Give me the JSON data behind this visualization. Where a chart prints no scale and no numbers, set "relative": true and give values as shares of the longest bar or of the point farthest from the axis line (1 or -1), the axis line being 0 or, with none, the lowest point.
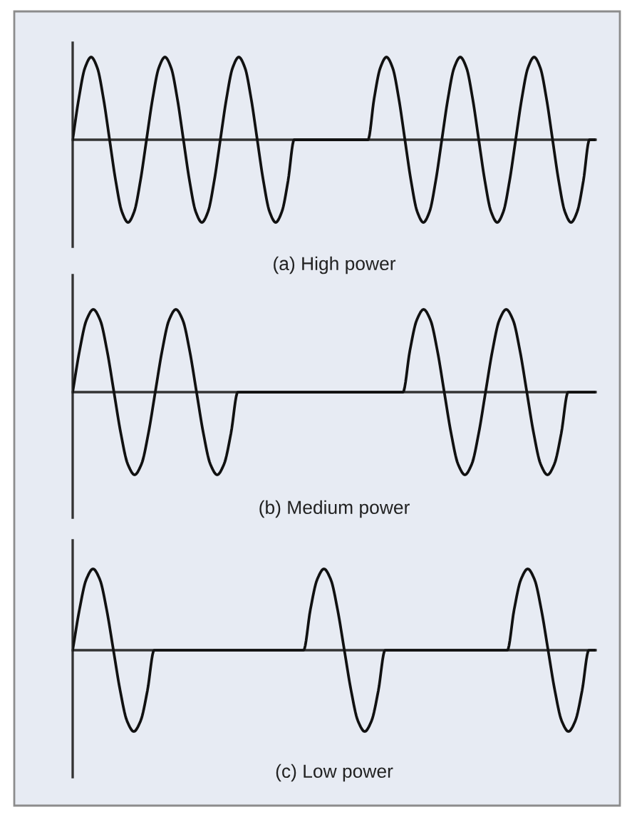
{
  "chart_data": [
    {
      "type": "line",
      "title": "(a) High power",
      "relative": true,
      "categories": [
        null,
        null,
        null,
        null,
        null,
        null,
        null,
        null,
        null,
        null,
        null,
        null,
        null,
        null,
        null,
        null,
        null,
        null,
        null,
        null,
        null,
        null,
        null,
        null,
        null,
        null,
        null,
        null,
        null,
        null,
        null,
        null,
        null,
        null,
        null,
        null,
        null,
        null,
        null,
        null,
        null,
        null,
        null,
        null,
        null,
        null,
        null,
        null,
        null,
        null,
        null,
        null,
        null,
        null,
        null,
        null,
        null,
        null,
        null,
        null,
        null,
        null,
        null,
        null,
        null,
        null,
        null,
        null,
        null,
        null,
        null,
        null,
        null,
        null,
        null,
        null,
        null,
        null,
        null,
        null,
        null,
        null,
        null,
        null,
        null,
        null
      ],
      "series": [
        {
          "color": "#111111",
          "values": [
            0,
            0.5,
            0.87,
            1,
            0.87,
            0.5,
            0,
            -0.5,
            -0.87,
            -1,
            -0.87,
            -0.5,
            0,
            0.5,
            0.87,
            1,
            0.87,
            0.5,
            0,
            -0.5,
            -0.87,
            -1,
            -0.87,
            -0.5,
            0,
            0.5,
            0.87,
            1,
            0.87,
            0.5,
            0,
            -0.5,
            -0.87,
            -1,
            -0.87,
            -0.5,
            0,
            0,
            0,
            0,
            0,
            0,
            0,
            0,
            0,
            0,
            0,
            0,
            0,
            0.5,
            0.87,
            1,
            0.87,
            0.5,
            0,
            -0.5,
            -0.87,
            -1,
            -0.87,
            -0.5,
            0,
            0.5,
            0.87,
            1,
            0.87,
            0.5,
            0,
            -0.5,
            -0.87,
            -1,
            -0.87,
            -0.5,
            0,
            0.5,
            0.87,
            1,
            0.87,
            0.5,
            0,
            -0.5,
            -0.87,
            -1,
            -0.87,
            -0.5,
            0,
            0
          ]
        }
      ]
    },
    {
      "type": "line",
      "title": "(b) Medium power",
      "relative": true,
      "categories": [
        null,
        null,
        null,
        null,
        null,
        null,
        null,
        null,
        null,
        null,
        null,
        null,
        null,
        null,
        null,
        null,
        null,
        null,
        null,
        null,
        null,
        null,
        null,
        null,
        null,
        null,
        null,
        null,
        null,
        null,
        null,
        null,
        null,
        null,
        null,
        null,
        null,
        null,
        null,
        null,
        null,
        null,
        null,
        null,
        null,
        null,
        null,
        null,
        null,
        null,
        null,
        null,
        null,
        null,
        null,
        null,
        null,
        null,
        null,
        null,
        null,
        null,
        null,
        null,
        null,
        null,
        null,
        null,
        null,
        null,
        null,
        null,
        null,
        null,
        null,
        null,
        null
      ],
      "series": [
        {
          "color": "#111111",
          "values": [
            0,
            0.5,
            0.87,
            1,
            0.87,
            0.5,
            0,
            -0.5,
            -0.87,
            -1,
            -0.87,
            -0.5,
            0,
            0.5,
            0.87,
            1,
            0.87,
            0.5,
            0,
            -0.5,
            -0.87,
            -1,
            -0.87,
            -0.5,
            0,
            0,
            0,
            0,
            0,
            0,
            0,
            0,
            0,
            0,
            0,
            0,
            0,
            0,
            0,
            0,
            0,
            0,
            0,
            0,
            0,
            0,
            0,
            0,
            0,
            0.5,
            0.87,
            1,
            0.87,
            0.5,
            0,
            -0.5,
            -0.87,
            -1,
            -0.87,
            -0.5,
            0,
            0.5,
            0.87,
            1,
            0.87,
            0.5,
            0,
            -0.5,
            -0.87,
            -1,
            -0.87,
            -0.5,
            0,
            0,
            0,
            0,
            0
          ]
        }
      ]
    },
    {
      "type": "line",
      "title": "(c) Low power",
      "relative": true,
      "categories": [
        null,
        null,
        null,
        null,
        null,
        null,
        null,
        null,
        null,
        null,
        null,
        null,
        null,
        null,
        null,
        null,
        null,
        null,
        null,
        null,
        null,
        null,
        null,
        null,
        null,
        null,
        null,
        null,
        null,
        null,
        null,
        null,
        null,
        null,
        null,
        null,
        null,
        null,
        null,
        null,
        null,
        null,
        null,
        null,
        null,
        null,
        null,
        null,
        null,
        null,
        null,
        null,
        null,
        null,
        null,
        null,
        null,
        null,
        null,
        null,
        null,
        null,
        null,
        null,
        null,
        null,
        null,
        null,
        null,
        null,
        null,
        null,
        null,
        null,
        null,
        null,
        null,
        null
      ],
      "series": [
        {
          "color": "#111111",
          "values": [
            0,
            0.5,
            0.87,
            1,
            0.87,
            0.5,
            0,
            -0.5,
            -0.87,
            -1,
            -0.87,
            -0.5,
            0,
            0,
            0,
            0,
            0,
            0,
            0,
            0,
            0,
            0,
            0,
            0,
            0,
            0,
            0,
            0,
            0,
            0,
            0,
            0,
            0,
            0,
            0,
            0.5,
            0.87,
            1,
            0.87,
            0.5,
            0,
            -0.5,
            -0.87,
            -1,
            -0.87,
            -0.5,
            0,
            0,
            0,
            0,
            0,
            0,
            0,
            0,
            0,
            0,
            0,
            0,
            0,
            0,
            0,
            0,
            0,
            0,
            0,
            0.5,
            0.87,
            1,
            0.87,
            0.5,
            0,
            -0.5,
            -0.87,
            -1,
            -0.87,
            -0.5,
            0,
            0
          ]
        }
      ]
    }
  ]
}
